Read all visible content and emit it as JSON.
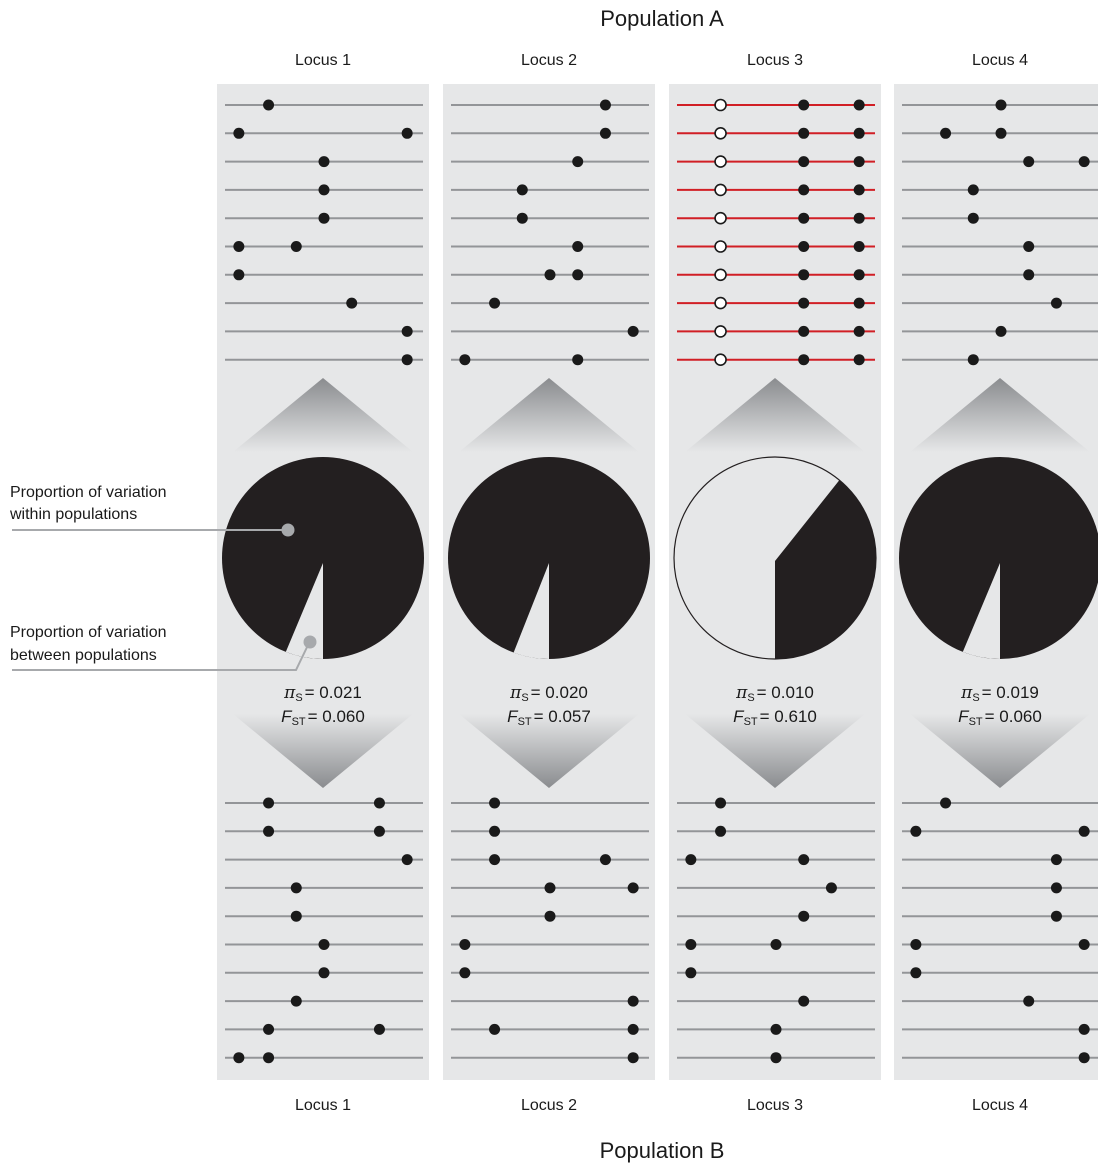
{
  "population_a_title": "Population A",
  "population_b_title": "Population B",
  "legend": {
    "within_line1": "Proportion of variation",
    "within_line2": "within populations",
    "between_line1": "Proportion of variation",
    "between_line2": "between populations"
  },
  "colors": {
    "panel": "#e6e7e8",
    "haplotype_line": "#939598",
    "highlight_line": "#d11f25",
    "snp": "#1a1a1a",
    "pie_within": "#231f20",
    "pie_between": "#e6e7e8",
    "marker": "#a7a9ac"
  },
  "loci": [
    {
      "label": "Locus 1",
      "pi_symbol": "π",
      "pi_sub": "S",
      "pi_value": "= 0.021",
      "fst_symbol": "F",
      "fst_sub": "ST",
      "fst_value": "= 0.060",
      "fst": 0.06,
      "highlight_a": false,
      "pop_a": [
        [
          0.22
        ],
        [
          0.07,
          0.92
        ],
        [
          0.5
        ],
        [
          0.5
        ],
        [
          0.5
        ],
        [
          0.07,
          0.36
        ],
        [
          0.07
        ],
        [
          0.64
        ],
        [
          0.92
        ],
        [
          0.92
        ]
      ],
      "pop_a_open": [],
      "pop_b": [
        [
          0.22,
          0.78
        ],
        [
          0.22,
          0.78
        ],
        [
          0.92
        ],
        [
          0.36
        ],
        [
          0.36
        ],
        [
          0.5
        ],
        [
          0.5
        ],
        [
          0.36
        ],
        [
          0.22,
          0.78
        ],
        [
          0.07,
          0.22
        ]
      ]
    },
    {
      "label": "Locus 2",
      "pi_symbol": "π",
      "pi_sub": "S",
      "pi_value": "= 0.020",
      "fst_symbol": "F",
      "fst_sub": "ST",
      "fst_value": "= 0.057",
      "fst": 0.057,
      "highlight_a": false,
      "pop_a": [
        [
          0.78
        ],
        [
          0.78
        ],
        [
          0.64
        ],
        [
          0.36
        ],
        [
          0.36
        ],
        [
          0.64
        ],
        [
          0.5,
          0.64
        ],
        [
          0.22
        ],
        [
          0.92
        ],
        [
          0.07,
          0.64
        ]
      ],
      "pop_a_open": [],
      "pop_b": [
        [
          0.22
        ],
        [
          0.22
        ],
        [
          0.22,
          0.78
        ],
        [
          0.5,
          0.92
        ],
        [
          0.5
        ],
        [
          0.07
        ],
        [
          0.07
        ],
        [
          0.92
        ],
        [
          0.22,
          0.92
        ],
        [
          0.92
        ]
      ]
    },
    {
      "label": "Locus 3",
      "pi_symbol": "π",
      "pi_sub": "S",
      "pi_value": "= 0.010",
      "fst_symbol": "F",
      "fst_sub": "ST",
      "fst_value": "= 0.610",
      "fst": 0.61,
      "highlight_a": true,
      "pop_a": [
        [
          0.64,
          0.92
        ],
        [
          0.64,
          0.92
        ],
        [
          0.64,
          0.92
        ],
        [
          0.64,
          0.92
        ],
        [
          0.64,
          0.92
        ],
        [
          0.64,
          0.92
        ],
        [
          0.64,
          0.92
        ],
        [
          0.64,
          0.92
        ],
        [
          0.64,
          0.92
        ],
        [
          0.64,
          0.92
        ]
      ],
      "pop_a_open": [
        0.22
      ],
      "pop_b": [
        [
          0.22
        ],
        [
          0.22
        ],
        [
          0.07,
          0.64
        ],
        [
          0.78
        ],
        [
          0.64
        ],
        [
          0.07,
          0.5
        ],
        [
          0.07
        ],
        [
          0.64
        ],
        [
          0.5
        ],
        [
          0.5
        ]
      ]
    },
    {
      "label": "Locus 4",
      "pi_symbol": "π",
      "pi_sub": "S",
      "pi_value": "= 0.019",
      "fst_symbol": "F",
      "fst_sub": "ST",
      "fst_value": "= 0.060",
      "fst": 0.06,
      "highlight_a": false,
      "pop_a": [
        [
          0.5
        ],
        [
          0.22,
          0.5
        ],
        [
          0.64,
          0.92
        ],
        [
          0.36
        ],
        [
          0.36
        ],
        [
          0.64
        ],
        [
          0.64
        ],
        [
          0.78
        ],
        [
          0.5
        ],
        [
          0.36
        ]
      ],
      "pop_a_open": [],
      "pop_b": [
        [
          0.22
        ],
        [
          0.07,
          0.92
        ],
        [
          0.78
        ],
        [
          0.78
        ],
        [
          0.78
        ],
        [
          0.07,
          0.92
        ],
        [
          0.07
        ],
        [
          0.64
        ],
        [
          0.92
        ],
        [
          0.92
        ]
      ]
    }
  ]
}
